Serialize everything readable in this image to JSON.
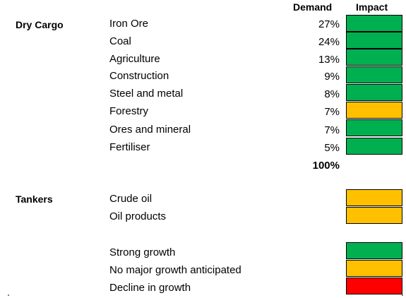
{
  "header": {
    "demand": "Demand",
    "impact": "Impact"
  },
  "colors": {
    "green": "#00b050",
    "amber": "#ffc000",
    "red": "#ff0000"
  },
  "dry_cargo": {
    "title": "Dry Cargo",
    "rows": [
      {
        "label": "Iron Ore",
        "demand": "27%",
        "impact": "green"
      },
      {
        "label": "Coal",
        "demand": "24%",
        "impact": "green"
      },
      {
        "label": "Agriculture",
        "demand": "13%",
        "impact": "green"
      },
      {
        "label": "Construction",
        "demand": "9%",
        "impact": "green"
      },
      {
        "label": "Steel and metal",
        "demand": "8%",
        "impact": "green"
      },
      {
        "label": "Forestry",
        "demand": "7%",
        "impact": "amber"
      },
      {
        "label": "Ores and mineral",
        "demand": "7%",
        "impact": "green"
      },
      {
        "label": "Fertiliser",
        "demand": "5%",
        "impact": "green"
      }
    ],
    "total": "100%"
  },
  "tankers": {
    "title": "Tankers",
    "rows": [
      {
        "label": "Crude oil",
        "impact": "amber"
      },
      {
        "label": "Oil products",
        "impact": "amber"
      }
    ]
  },
  "legend": {
    "rows": [
      {
        "label": "Strong growth",
        "impact": "green"
      },
      {
        "label": "No major growth anticipated",
        "impact": "amber"
      },
      {
        "label": "Decline in growth",
        "impact": "red"
      }
    ]
  }
}
